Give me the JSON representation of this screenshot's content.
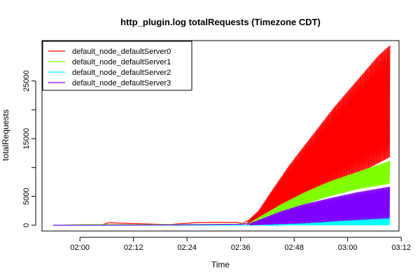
{
  "chart_data": {
    "type": "line",
    "title": "http_plugin.log totalRequests (Timezone CDT)",
    "xlabel": "Time",
    "ylabel": "totalRequests",
    "x_ticks": [
      "02:00",
      "02:12",
      "02:24",
      "02:36",
      "02:48",
      "03:00",
      "03:12"
    ],
    "x_tick_minutes": [
      120,
      132,
      144,
      156,
      168,
      180,
      192
    ],
    "xlim_minutes": [
      111.5,
      191.5
    ],
    "y_ticks": [
      0,
      5000,
      15000,
      25000
    ],
    "y_minor_ticks": [
      10000,
      20000
    ],
    "ylim": [
      -1000,
      32000
    ],
    "grid": false,
    "legend_position": "top-left",
    "series": [
      {
        "name": "default_node_defaultServer0",
        "color": "#ff0000",
        "band_low": [
          [
            157.5,
            0
          ],
          [
            160,
            1200
          ],
          [
            165,
            2600
          ],
          [
            170,
            4400
          ],
          [
            175,
            6500
          ],
          [
            180,
            8300
          ],
          [
            185,
            10000
          ],
          [
            189.5,
            11800
          ]
        ],
        "band_high": [
          [
            157.5,
            700
          ],
          [
            160,
            2500
          ],
          [
            163,
            6000
          ],
          [
            167,
            10500
          ],
          [
            172,
            15500
          ],
          [
            177,
            20500
          ],
          [
            182,
            25000
          ],
          [
            187,
            29500
          ],
          [
            189.5,
            31200
          ]
        ],
        "baseline": [
          [
            114,
            0
          ],
          [
            125,
            80
          ],
          [
            126.5,
            450
          ],
          [
            129,
            350
          ],
          [
            140,
            120
          ],
          [
            146,
            450
          ],
          [
            150,
            500
          ],
          [
            155,
            500
          ],
          [
            156.5,
            300
          ],
          [
            157.5,
            800
          ]
        ]
      },
      {
        "name": "default_node_defaultServer1",
        "color": "#80ff00",
        "band_low": [
          [
            158,
            0
          ],
          [
            162,
            1500
          ],
          [
            168,
            3000
          ],
          [
            175,
            4800
          ],
          [
            182,
            6200
          ],
          [
            189.5,
            7200
          ]
        ],
        "band_high": [
          [
            158,
            400
          ],
          [
            161,
            1800
          ],
          [
            165,
            3600
          ],
          [
            170,
            5600
          ],
          [
            176,
            7600
          ],
          [
            182,
            9200
          ],
          [
            189.5,
            11200
          ]
        ],
        "baseline": [
          [
            114,
            0
          ],
          [
            120,
            100
          ],
          [
            140,
            100
          ],
          [
            156,
            200
          ],
          [
            158,
            400
          ]
        ]
      },
      {
        "name": "default_node_defaultServer2",
        "color": "#00ffff",
        "band_low": [
          [
            158,
            0
          ],
          [
            189.5,
            0
          ]
        ],
        "band_high": [
          [
            158,
            0
          ],
          [
            166,
            300
          ],
          [
            172,
            900
          ],
          [
            178,
            1400
          ],
          [
            184,
            1800
          ],
          [
            189.5,
            2200
          ]
        ],
        "baseline": [
          [
            114,
            0
          ],
          [
            158,
            0
          ]
        ]
      },
      {
        "name": "default_node_defaultServer3",
        "color": "#8000ff",
        "band_low": [
          [
            158,
            0
          ],
          [
            170,
            300
          ],
          [
            180,
            800
          ],
          [
            189.5,
            1200
          ]
        ],
        "band_high": [
          [
            158,
            300
          ],
          [
            161,
            1200
          ],
          [
            165,
            2400
          ],
          [
            170,
            3600
          ],
          [
            176,
            4700
          ],
          [
            182,
            5700
          ],
          [
            189.5,
            6700
          ]
        ],
        "baseline": [
          [
            114,
            0
          ],
          [
            140,
            50
          ],
          [
            156,
            150
          ],
          [
            158,
            300
          ]
        ]
      }
    ]
  }
}
